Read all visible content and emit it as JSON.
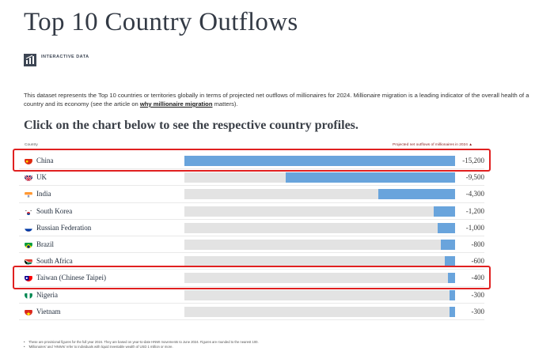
{
  "title": "Top 10 Country Outflows",
  "badge": {
    "label": "INTERACTIVE DATA",
    "icon": "bar-chart-icon"
  },
  "description": {
    "text_before": "This dataset represents the Top 10 countries or territories globally in terms of projected net outflows of millionaires for 2024. Millionaire migration is a leading indicator of the overall health of a country and its economy (see the article on ",
    "link": "why millionaire migration",
    "text_after": " matters)."
  },
  "subtitle": "Click on the chart below to see the respective country profiles.",
  "colors": {
    "bar": "#69a4dc",
    "track": "#e3e3e3",
    "highlight": "#e02020"
  },
  "chart_data": {
    "type": "bar",
    "orientation": "horizontal",
    "header_left": "Country",
    "header_right": "Projected net outflows of millionaires in 2024 ▲",
    "categories": [
      "China",
      "UK",
      "India",
      "South Korea",
      "Russian Federation",
      "Brazil",
      "South Africa",
      "Taiwan (Chinese Taipei)",
      "Nigeria",
      "Vietnam"
    ],
    "values": [
      -15200,
      -9500,
      -4300,
      -1200,
      -1000,
      -800,
      -600,
      -400,
      -300,
      -300
    ],
    "value_labels": [
      "-15,200",
      "-9,500",
      "-4,300",
      "-1,200",
      "-1,000",
      "-800",
      "-600",
      "-400",
      "-300",
      "-300"
    ],
    "xlim": [
      -15200,
      0
    ],
    "highlighted": [
      "China",
      "Taiwan (Chinese Taipei)"
    ]
  },
  "footnotes": [
    "These are provisional figures for the full year 2024. They are based on year-to-date HNWI movements to June 2024. Figures are rounded to the nearest 100.",
    "'Millionaires' and 'HNWIs' refer to individuals with liquid investable wealth of USD 1 million or more."
  ]
}
